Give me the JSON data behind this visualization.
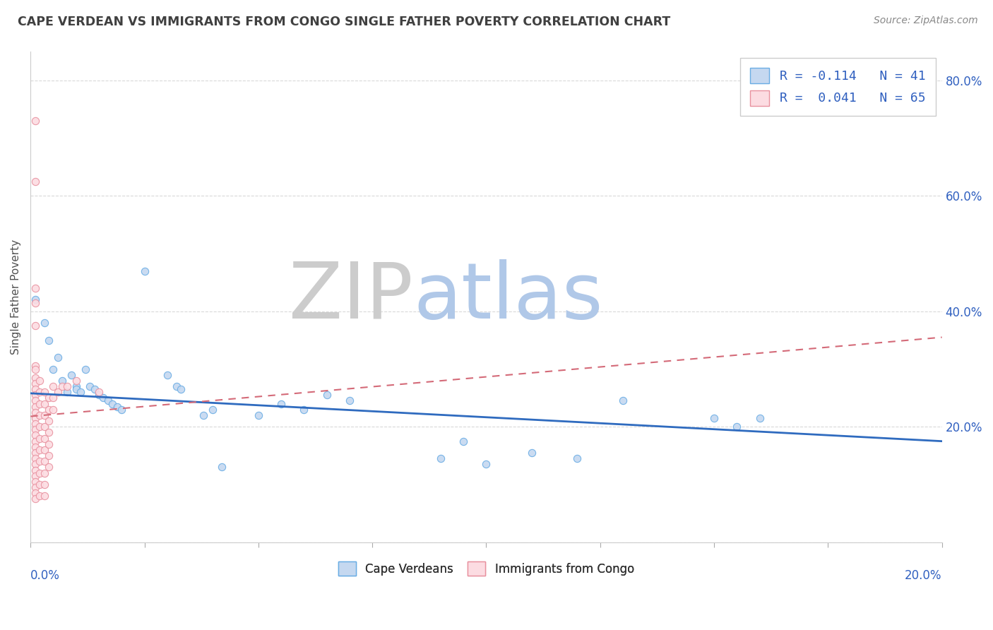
{
  "title": "CAPE VERDEAN VS IMMIGRANTS FROM CONGO SINGLE FATHER POVERTY CORRELATION CHART",
  "source": "Source: ZipAtlas.com",
  "ylabel": "Single Father Poverty",
  "xlim": [
    0.0,
    0.2
  ],
  "ylim": [
    0.0,
    0.85
  ],
  "legend_entries": [
    {
      "label": "R = -0.114   N = 41"
    },
    {
      "label": "R =  0.041   N = 65"
    }
  ],
  "blue_scatter": [
    [
      0.001,
      0.42
    ],
    [
      0.003,
      0.38
    ],
    [
      0.004,
      0.35
    ],
    [
      0.005,
      0.3
    ],
    [
      0.006,
      0.32
    ],
    [
      0.007,
      0.28
    ],
    [
      0.008,
      0.26
    ],
    [
      0.009,
      0.29
    ],
    [
      0.01,
      0.27
    ],
    [
      0.01,
      0.265
    ],
    [
      0.011,
      0.26
    ],
    [
      0.012,
      0.3
    ],
    [
      0.013,
      0.27
    ],
    [
      0.014,
      0.265
    ],
    [
      0.015,
      0.255
    ],
    [
      0.016,
      0.25
    ],
    [
      0.017,
      0.245
    ],
    [
      0.018,
      0.24
    ],
    [
      0.019,
      0.235
    ],
    [
      0.02,
      0.23
    ],
    [
      0.025,
      0.47
    ],
    [
      0.03,
      0.29
    ],
    [
      0.032,
      0.27
    ],
    [
      0.033,
      0.265
    ],
    [
      0.038,
      0.22
    ],
    [
      0.04,
      0.23
    ],
    [
      0.042,
      0.13
    ],
    [
      0.05,
      0.22
    ],
    [
      0.055,
      0.24
    ],
    [
      0.06,
      0.23
    ],
    [
      0.065,
      0.255
    ],
    [
      0.07,
      0.245
    ],
    [
      0.09,
      0.145
    ],
    [
      0.095,
      0.175
    ],
    [
      0.1,
      0.135
    ],
    [
      0.11,
      0.155
    ],
    [
      0.12,
      0.145
    ],
    [
      0.13,
      0.245
    ],
    [
      0.15,
      0.215
    ],
    [
      0.155,
      0.2
    ],
    [
      0.16,
      0.215
    ]
  ],
  "pink_scatter": [
    [
      0.001,
      0.73
    ],
    [
      0.001,
      0.625
    ],
    [
      0.001,
      0.44
    ],
    [
      0.001,
      0.415
    ],
    [
      0.001,
      0.375
    ],
    [
      0.001,
      0.305
    ],
    [
      0.001,
      0.3
    ],
    [
      0.001,
      0.285
    ],
    [
      0.001,
      0.275
    ],
    [
      0.001,
      0.265
    ],
    [
      0.001,
      0.255
    ],
    [
      0.001,
      0.245
    ],
    [
      0.001,
      0.235
    ],
    [
      0.001,
      0.225
    ],
    [
      0.001,
      0.215
    ],
    [
      0.001,
      0.205
    ],
    [
      0.001,
      0.195
    ],
    [
      0.001,
      0.185
    ],
    [
      0.001,
      0.175
    ],
    [
      0.001,
      0.165
    ],
    [
      0.001,
      0.155
    ],
    [
      0.001,
      0.145
    ],
    [
      0.001,
      0.135
    ],
    [
      0.001,
      0.125
    ],
    [
      0.001,
      0.115
    ],
    [
      0.001,
      0.105
    ],
    [
      0.001,
      0.095
    ],
    [
      0.001,
      0.085
    ],
    [
      0.001,
      0.075
    ],
    [
      0.002,
      0.28
    ],
    [
      0.002,
      0.26
    ],
    [
      0.002,
      0.24
    ],
    [
      0.002,
      0.22
    ],
    [
      0.002,
      0.2
    ],
    [
      0.002,
      0.18
    ],
    [
      0.002,
      0.16
    ],
    [
      0.002,
      0.14
    ],
    [
      0.002,
      0.12
    ],
    [
      0.002,
      0.1
    ],
    [
      0.002,
      0.08
    ],
    [
      0.003,
      0.26
    ],
    [
      0.003,
      0.24
    ],
    [
      0.003,
      0.22
    ],
    [
      0.003,
      0.2
    ],
    [
      0.003,
      0.18
    ],
    [
      0.003,
      0.16
    ],
    [
      0.003,
      0.14
    ],
    [
      0.003,
      0.12
    ],
    [
      0.003,
      0.1
    ],
    [
      0.003,
      0.08
    ],
    [
      0.004,
      0.25
    ],
    [
      0.004,
      0.23
    ],
    [
      0.004,
      0.21
    ],
    [
      0.004,
      0.19
    ],
    [
      0.004,
      0.17
    ],
    [
      0.004,
      0.15
    ],
    [
      0.004,
      0.13
    ],
    [
      0.005,
      0.27
    ],
    [
      0.005,
      0.25
    ],
    [
      0.005,
      0.23
    ],
    [
      0.006,
      0.26
    ],
    [
      0.007,
      0.27
    ],
    [
      0.008,
      0.27
    ],
    [
      0.01,
      0.28
    ],
    [
      0.015,
      0.26
    ]
  ],
  "blue_trend_x": [
    0.0,
    0.2
  ],
  "blue_trend_y": [
    0.258,
    0.175
  ],
  "pink_trend_x": [
    0.0,
    0.2
  ],
  "pink_trend_y": [
    0.218,
    0.355
  ],
  "watermark_zip": "ZIP",
  "watermark_atlas": "atlas",
  "scatter_size": 55,
  "blue_face": "#c5d8f0",
  "blue_edge": "#6aade4",
  "pink_face": "#fcdce2",
  "pink_edge": "#e8919f",
  "trend_blue_color": "#2f6bbf",
  "trend_pink_color": "#d46a78",
  "legend_text_color": "#2f5fbf",
  "title_color": "#404040",
  "axis_label_color": "#3060c0",
  "source_color": "#888888",
  "background_color": "#ffffff",
  "grid_color": "#d0d0d0",
  "yticks": [
    0.0,
    0.2,
    0.4,
    0.6,
    0.8
  ],
  "ytick_labels_right": [
    "",
    "20.0%",
    "40.0%",
    "60.0%",
    "80.0%"
  ]
}
